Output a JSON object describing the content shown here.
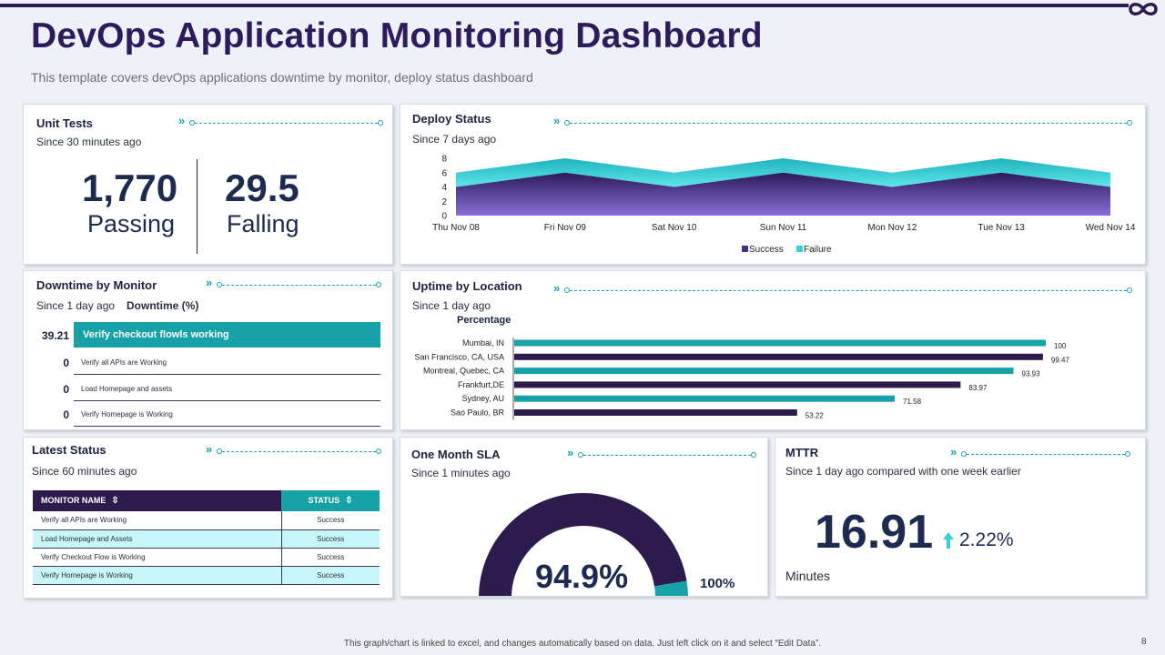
{
  "header": {
    "title": "DevOps Application Monitoring Dashboard",
    "subtitle": "This template covers devOps applications downtime by monitor, deploy status dashboard"
  },
  "unit_tests": {
    "title": "Unit  Tests",
    "since": "Since 30 minutes ago",
    "passing_value": "1,770",
    "passing_label": "Passing",
    "falling_value": "29.5",
    "falling_label": "Falling"
  },
  "deploy_status": {
    "title": "Deploy Status",
    "since": "Since 7 days ago"
  },
  "downtime": {
    "title": "Downtime by Monitor",
    "since": "Since 1 day ago",
    "metric_label": "Downtime (%)",
    "rows": [
      {
        "value": "39.21",
        "label": "Verify checkout flowls working"
      },
      {
        "value": "0",
        "label": "Verify all APIs are Working"
      },
      {
        "value": "0",
        "label": "Load Homepage  and assets"
      },
      {
        "value": "0",
        "label": "Verify Homepage is Working"
      }
    ]
  },
  "uptime": {
    "title": "Uptime by Location",
    "since": "Since 1 day ago",
    "axis_title": "Percentage"
  },
  "latest_status": {
    "title": "Latest Status",
    "since": "Since 60 minutes ago",
    "col_monitor": "MONITOR NAME",
    "col_status": "STATUS",
    "rows": [
      {
        "monitor": "Verify all APIs are Working",
        "status": "Success"
      },
      {
        "monitor": "Load Homepage  and Assets",
        "status": "Success"
      },
      {
        "monitor": "Verify Checkout Flow is Working",
        "status": "Success"
      },
      {
        "monitor": "Verify Homepage is Working",
        "status": "Success"
      }
    ]
  },
  "sla": {
    "title": "One Month  SLA",
    "since": "Since 1 minutes ago",
    "value_text": "94.9%",
    "max_text": "100%",
    "value": 94.9
  },
  "mttr": {
    "title": "MTTR",
    "since": "Since 1 day ago compared with one week earlier",
    "value": "16.91",
    "change": "2.22%",
    "unit": "Minutes"
  },
  "footer": {
    "note": "This graph/chart is linked to excel, and changes automatically based on data. Just left click on it and select “Edit Data”.",
    "page": "8"
  },
  "colors": {
    "primary": "#2d1b5e",
    "accent": "#17a2a8",
    "success_series": "#4a2f8a",
    "failure_series": "#2fd3d8"
  },
  "chart_data": [
    {
      "type": "area",
      "title": "Deploy Status",
      "categories": [
        "Thu Nov 08",
        "Fri Nov 09",
        "Sat Nov 10",
        "Sun Nov 11",
        "Mon Nov 12",
        "Tue Nov 13",
        "Wed Nov 14"
      ],
      "series": [
        {
          "name": "Success",
          "values": [
            4,
            6,
            4,
            6,
            4,
            6,
            4
          ]
        },
        {
          "name": "Failure",
          "values": [
            2,
            2,
            2,
            2,
            2,
            2,
            2
          ]
        }
      ],
      "stacked": true,
      "ylim": [
        0,
        8
      ],
      "yticks": [
        0,
        2,
        4,
        6,
        8
      ],
      "legend": "bottom"
    },
    {
      "type": "bar",
      "orientation": "horizontal",
      "title": "Uptime by Location",
      "xlabel": "Percentage",
      "categories": [
        "Mumbai, IN",
        "San Francisco, CA, USA",
        "Montreal, Quebec, CA",
        "Frankfurt,DE",
        "Sydney, AU",
        "Sao Paulo, BR"
      ],
      "values": [
        100,
        99.47,
        93.93,
        83.97,
        71.58,
        53.22
      ],
      "bar_colors": [
        "#17a2a8",
        "#2d1b4e",
        "#17a2a8",
        "#2d1b4e",
        "#17a2a8",
        "#2d1b4e"
      ],
      "xlim": [
        0,
        100
      ]
    }
  ]
}
